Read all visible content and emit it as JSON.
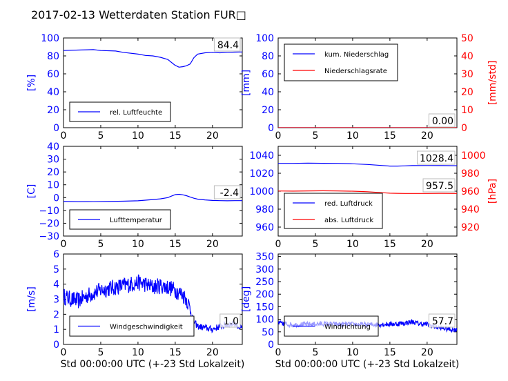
{
  "title": "2017-02-13 Wetterdaten Station FUR□",
  "colors": {
    "blue": "#0000ff",
    "red": "#ff0000",
    "black": "#000000",
    "lightblue": "#8888ff"
  },
  "xlabel": "Std 00:00:00 UTC (+-23 Std Lokalzeit)",
  "chart_data": [
    {
      "type": "line",
      "xlim": [
        0,
        24
      ],
      "ylim": [
        0,
        100
      ],
      "xticks": [
        "0",
        "5",
        "10",
        "15",
        "20"
      ],
      "yticks": [
        "0",
        "20",
        "40",
        "60",
        "80",
        "100"
      ],
      "ylabel": "[%]",
      "legend": [
        "rel. Luftfeuchte"
      ],
      "legend_position": "lower-left",
      "value_label": "84.4",
      "series": [
        {
          "name": "rel. Luftfeuchte",
          "color": "blue",
          "x": [
            0,
            2,
            4,
            5,
            7,
            8,
            10,
            11,
            12,
            13,
            14,
            14.6,
            15,
            15.5,
            16,
            16.5,
            17,
            17.5,
            18,
            19,
            20,
            21,
            22,
            23,
            24
          ],
          "y": [
            86,
            86.5,
            87,
            86,
            85.5,
            84,
            82,
            80.5,
            80,
            78.5,
            76,
            72,
            69.5,
            67.5,
            68,
            69,
            71,
            78,
            82,
            83.5,
            84,
            83.5,
            84,
            84.2,
            84.4
          ]
        }
      ]
    },
    {
      "type": "line",
      "xlim": [
        0,
        24
      ],
      "ylim": [
        0,
        100
      ],
      "y2lim": [
        0,
        50
      ],
      "xticks": [
        "0",
        "5",
        "10",
        "15",
        "20"
      ],
      "yticks": [
        "0",
        "20",
        "40",
        "60",
        "80",
        "100"
      ],
      "y2ticks": [
        "0",
        "10",
        "20",
        "30",
        "40",
        "50"
      ],
      "ylabel": "[mm]",
      "y2label": "[mm/std]",
      "legend": [
        "kum. Niederschlag",
        "Niederschlagsrate"
      ],
      "legend_position": "upper-left",
      "value_label": "0.00",
      "series": [
        {
          "name": "kum. Niederschlag",
          "color": "blue",
          "x": [
            0,
            24
          ],
          "y": [
            0,
            0
          ]
        },
        {
          "name": "Niederschlagsrate",
          "color": "red",
          "x": [
            0,
            24
          ],
          "y": [
            0,
            0
          ]
        }
      ]
    },
    {
      "type": "line",
      "xlim": [
        0,
        24
      ],
      "ylim": [
        -30,
        40
      ],
      "xticks": [
        "0",
        "5",
        "10",
        "15",
        "20"
      ],
      "yticks": [
        "−30",
        "−20",
        "−10",
        "0",
        "10",
        "20",
        "30",
        "40"
      ],
      "ylabel": "[C]",
      "legend": [
        "Lufttemperatur"
      ],
      "legend_position": "lower-left",
      "value_label": "-2.4",
      "series": [
        {
          "name": "Lufttemperatur",
          "color": "blue",
          "x": [
            0,
            2,
            4,
            6,
            8,
            10,
            11,
            12,
            13,
            14,
            14.5,
            15,
            15.5,
            16,
            16.5,
            17,
            17.5,
            18,
            19,
            20,
            21,
            22,
            23,
            24
          ],
          "y": [
            -3,
            -3.3,
            -3.2,
            -3,
            -2.8,
            -2.5,
            -2,
            -1.5,
            -1,
            0,
            1.2,
            2.3,
            2.6,
            2.2,
            1.5,
            0.5,
            -0.5,
            -1.2,
            -1.8,
            -2.2,
            -2.4,
            -2.5,
            -2.4,
            -2.4
          ]
        }
      ]
    },
    {
      "type": "line",
      "xlim": [
        0,
        24
      ],
      "ylim": [
        950,
        1050
      ],
      "y2lim": [
        910,
        1010
      ],
      "xticks": [
        "0",
        "5",
        "10",
        "15",
        "20"
      ],
      "yticks": [
        "960",
        "980",
        "1000",
        "1020",
        "1040"
      ],
      "y2ticks": [
        "920",
        "940",
        "960",
        "980",
        "1000"
      ],
      "y2label": "[hPa]",
      "legend": [
        "red. Luftdruck",
        "abs. Luftdruck"
      ],
      "legend_position": "lower-left",
      "value_labels": [
        "1028.4",
        "957.5"
      ],
      "series": [
        {
          "name": "red. Luftdruck",
          "color": "blue",
          "x": [
            0,
            2,
            4,
            6,
            8,
            10,
            12,
            14,
            15,
            16,
            17,
            18,
            20,
            22,
            24
          ],
          "y": [
            1031,
            1031,
            1031.2,
            1031.1,
            1031,
            1030.5,
            1029.8,
            1028.6,
            1028,
            1028,
            1028.2,
            1028.5,
            1028.6,
            1028.5,
            1028.4
          ]
        },
        {
          "name": "abs. Luftdruck",
          "color": "red",
          "x": [
            0,
            2,
            4,
            6,
            8,
            10,
            12,
            14,
            15,
            16,
            17,
            18,
            20,
            22,
            24
          ],
          "y": [
            960.2,
            960.1,
            960.3,
            960.5,
            960.3,
            960,
            959.4,
            958.3,
            957.8,
            957.6,
            957.5,
            957.5,
            957.5,
            957.6,
            957.5
          ]
        }
      ]
    },
    {
      "type": "line",
      "xlim": [
        0,
        24
      ],
      "ylim": [
        0,
        6
      ],
      "xticks": [
        "0",
        "5",
        "10",
        "15",
        "20"
      ],
      "yticks": [
        "0",
        "1",
        "2",
        "3",
        "4",
        "5",
        "6"
      ],
      "ylabel": "[m/s]",
      "legend": [
        "Windgeschwindigkeit"
      ],
      "legend_position": "lower-left",
      "value_label": "1.0",
      "noise": 0.55,
      "series": [
        {
          "name": "Windgeschwindigkeit",
          "color": "blue",
          "x": [
            0,
            1,
            2,
            3,
            4,
            5,
            6,
            7,
            8,
            9,
            10,
            11,
            12,
            13,
            14,
            15,
            16,
            16.5,
            17,
            17.5,
            18,
            19,
            20,
            21,
            22,
            23,
            24
          ],
          "y": [
            3.2,
            3.0,
            2.9,
            3.2,
            3.4,
            3.6,
            3.7,
            3.8,
            3.9,
            4.0,
            4.1,
            4.0,
            3.8,
            3.9,
            3.8,
            3.6,
            3.3,
            3.0,
            2.4,
            1.5,
            1.2,
            1.1,
            1.0,
            1.2,
            1.3,
            1.4,
            1.0
          ]
        }
      ]
    },
    {
      "type": "line",
      "xlim": [
        0,
        24
      ],
      "ylim": [
        0,
        360
      ],
      "xticks": [
        "0",
        "5",
        "10",
        "15",
        "20"
      ],
      "yticks": [
        "0",
        "50",
        "100",
        "150",
        "200",
        "250",
        "300",
        "350"
      ],
      "ylabel": "[deg]",
      "legend": [
        "Windrichtung"
      ],
      "legend_position": "lower-left",
      "value_label": "57.7",
      "noise": 10,
      "series": [
        {
          "name": "Windrichtung",
          "color": "blue",
          "x": [
            0,
            2,
            4,
            6,
            8,
            10,
            12,
            14,
            16,
            17,
            18,
            19,
            20,
            21,
            22,
            23,
            24
          ],
          "y": [
            85,
            78,
            80,
            82,
            80,
            80,
            78,
            80,
            82,
            85,
            90,
            82,
            80,
            70,
            65,
            60,
            58
          ]
        }
      ]
    }
  ]
}
